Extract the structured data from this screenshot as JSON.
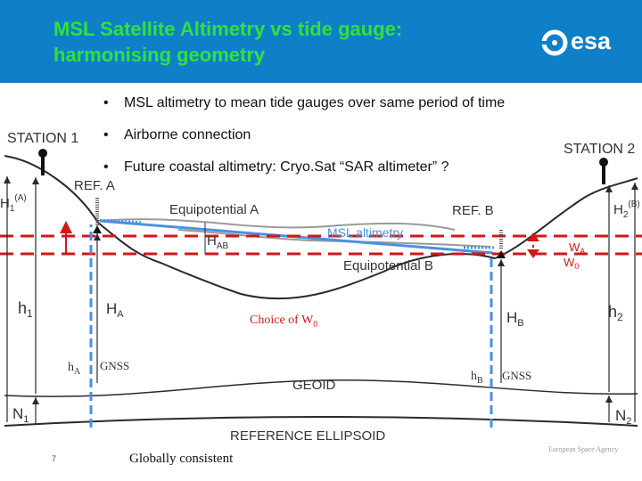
{
  "header": {
    "title_line1": "MSL Satellite Altimetry vs tide gauge:",
    "title_line2": "harmonising geometry",
    "logo_text": "esa"
  },
  "bullets": [
    "MSL altimetry to mean tide gauges over same period of time",
    "Airborne connection",
    "Future coastal altimetry: Cryo.Sat “SAR altimeter” ?"
  ],
  "diagram": {
    "station1": "STATION 1",
    "station2": "STATION 2",
    "ref_a": "REF. A",
    "ref_b": "REF. B",
    "equip_a": "Equipotential A",
    "equip_b": "Equipotential B",
    "msl_altimetry": "MSL altimetry",
    "h_ab": {
      "base": "H",
      "sub": "AB"
    },
    "h1a": {
      "base": "H",
      "sub": "1",
      "sup": "(A)"
    },
    "h2b": {
      "base": "H",
      "sub": "2",
      "sup": "(B)"
    },
    "w_a": {
      "base": "W",
      "sub": "A"
    },
    "w_0": {
      "base": "W",
      "sub": "0"
    },
    "choice": {
      "prefix": "Choice of W",
      "sub": "0"
    },
    "h1": {
      "base": "h",
      "sub": "1"
    },
    "h2": {
      "base": "h",
      "sub": "2"
    },
    "ha_big": {
      "base": "H",
      "sub": "A"
    },
    "hb_big": {
      "base": "H",
      "sub": "B"
    },
    "ha_small": {
      "base": "h",
      "sub": "A"
    },
    "hb_small": {
      "base": "h",
      "sub": "B"
    },
    "gnss_a": "GNSS",
    "gnss_b": "GNSS",
    "geoid": "GEOID",
    "n1": {
      "base": "N",
      "sub": "1"
    },
    "n2": {
      "base": "N",
      "sub": "2"
    },
    "ellipsoid": "REFERENCE ELLIPSOID",
    "globally": "Globally consistent"
  },
  "footer": {
    "page_number": "7",
    "agency": "European Space Agency"
  },
  "colors": {
    "header_bg": "#0f80c8",
    "title": "#32e03c",
    "red": "#d01818",
    "blue": "#4a90e2",
    "gray_curve": "#9a9a9a",
    "dark": "#2a2a2a"
  }
}
